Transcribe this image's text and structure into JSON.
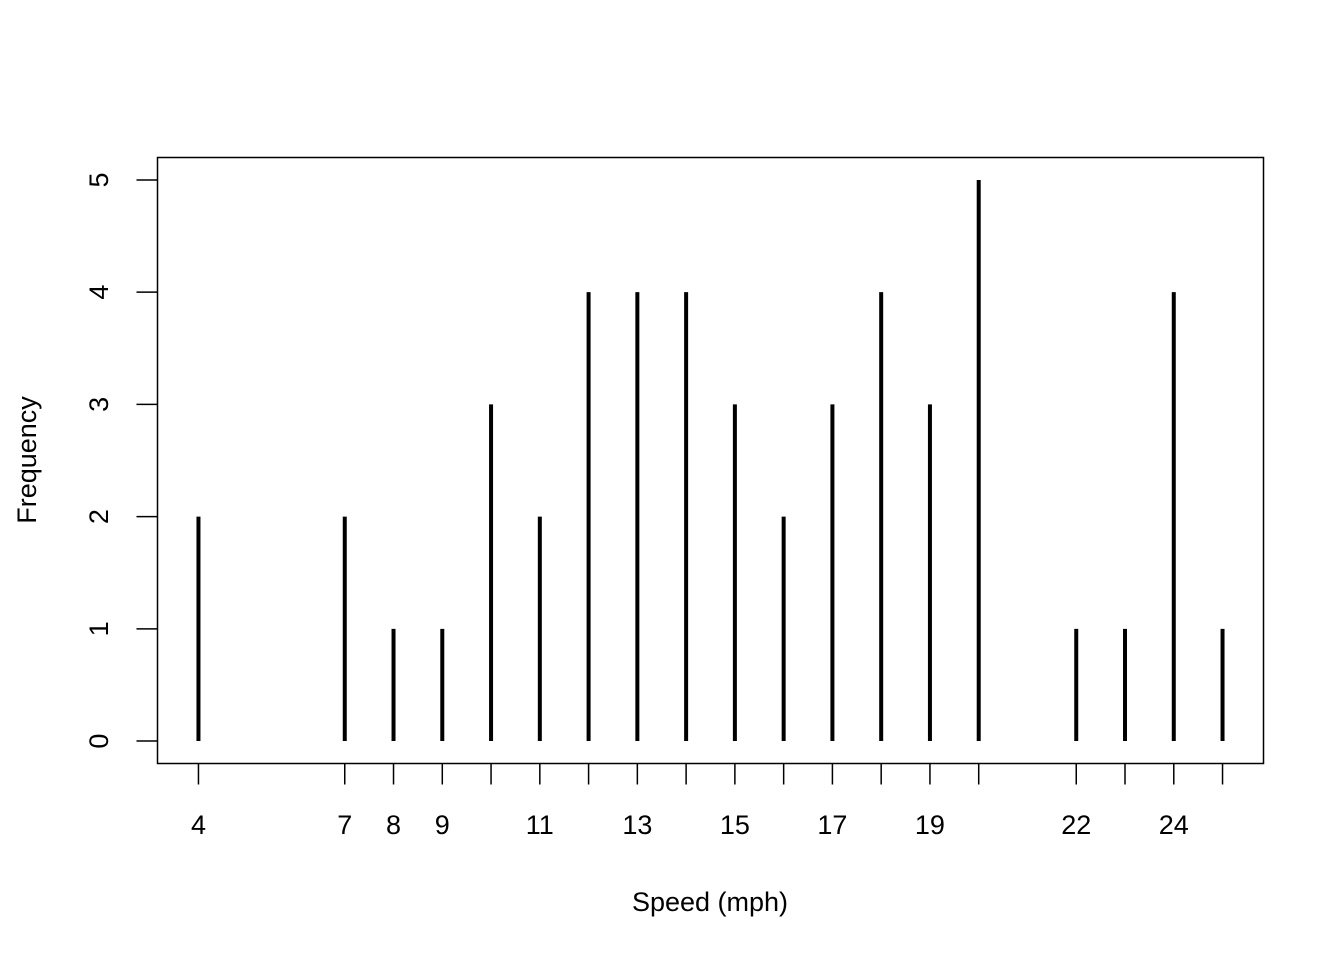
{
  "chart_data": {
    "type": "bar",
    "style": "spike",
    "title": "",
    "xlabel": "Speed (mph)",
    "ylabel": "Frequency",
    "x": [
      4,
      7,
      8,
      9,
      10,
      11,
      12,
      13,
      14,
      15,
      16,
      17,
      18,
      19,
      20,
      22,
      23,
      24,
      25
    ],
    "values": [
      2,
      2,
      1,
      1,
      3,
      2,
      4,
      4,
      4,
      3,
      2,
      3,
      4,
      3,
      5,
      1,
      1,
      4,
      1
    ],
    "x_tick_labels": [
      "4",
      "7",
      "8",
      "9",
      "11",
      "13",
      "15",
      "17",
      "19",
      "22",
      "24"
    ],
    "y_ticks": [
      0,
      1,
      2,
      3,
      4,
      5
    ],
    "xlim": [
      3.16,
      25.84
    ],
    "ylim": [
      -0.2,
      5.2
    ],
    "grid": false,
    "color": "#000000"
  }
}
